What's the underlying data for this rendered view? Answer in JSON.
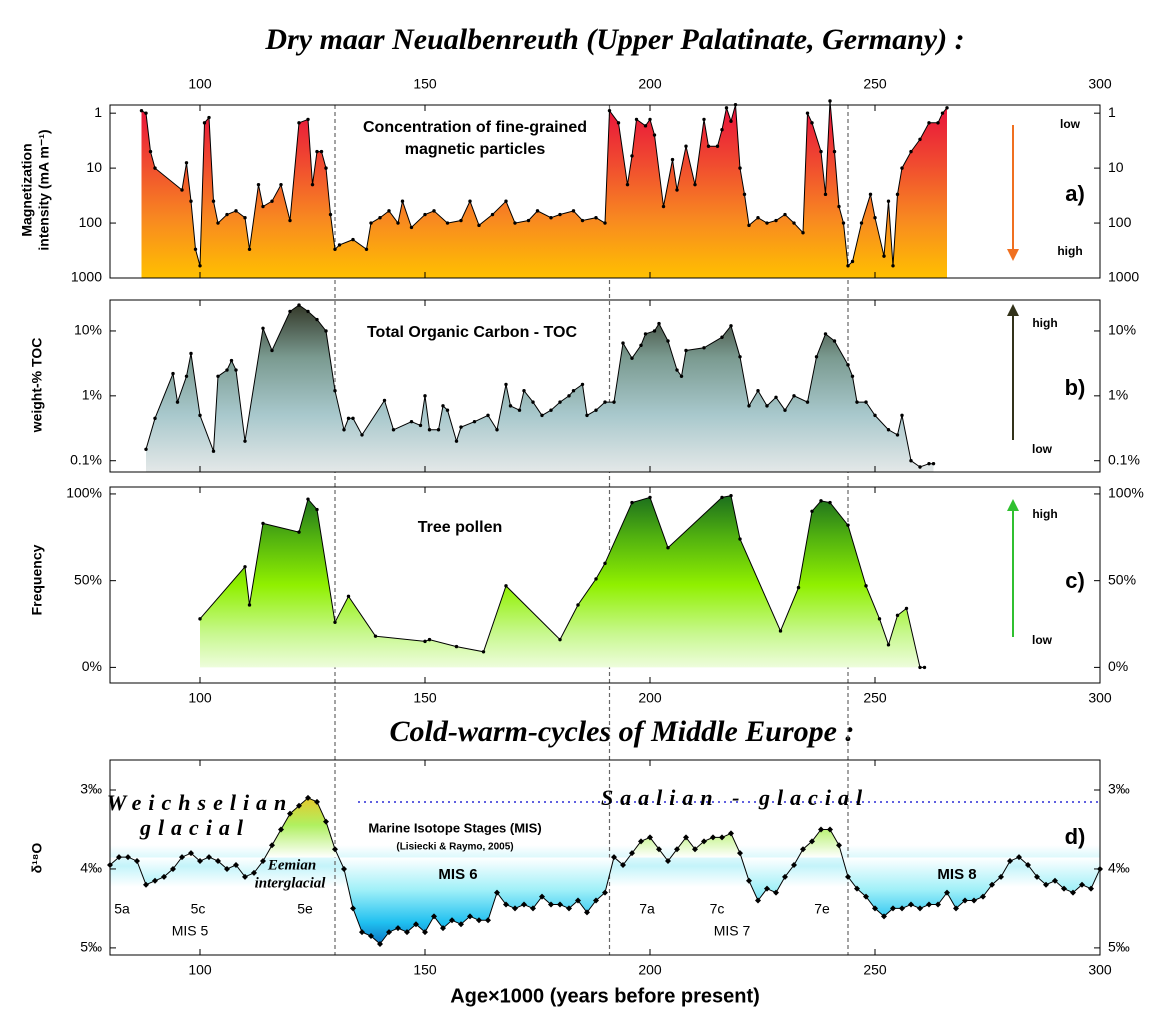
{
  "title": "Dry maar Neualbenreuth (Upper Palatinate, Germany) :",
  "section_title": "Cold-warm-cycles of Middle Europe :",
  "xlabel": "Age×1000 (years before present)",
  "xlim": [
    80,
    300
  ],
  "xticks": [
    100,
    150,
    200,
    250,
    300
  ],
  "boundaries": [
    130,
    191,
    244
  ],
  "chart_data": [
    {
      "type": "area",
      "log": true,
      "ylabel": [
        "Magnetization",
        "intensity (mA m⁻¹)"
      ],
      "ylim": [
        1000,
        0.71
      ],
      "yticks": [
        1,
        10,
        100,
        1000
      ],
      "color": "#000000",
      "gradient": [
        "#e8103c",
        "#f04a30",
        "#f88a20",
        "#ffc000"
      ],
      "x": [
        87,
        88,
        89,
        90,
        96,
        97,
        98,
        99,
        100,
        101,
        102,
        103,
        104,
        106,
        108,
        110,
        111,
        113,
        114,
        116,
        118,
        120,
        122,
        124,
        125,
        126,
        127,
        128,
        129,
        130,
        131,
        134,
        137,
        138,
        140,
        142,
        144,
        145,
        147,
        150,
        152,
        155,
        158,
        160,
        162,
        165,
        168,
        170,
        173,
        175,
        178,
        180,
        183,
        185,
        188,
        190,
        191,
        193,
        195,
        196,
        197,
        199,
        200,
        201,
        203,
        205,
        206,
        208,
        210,
        212,
        213,
        215,
        216,
        217,
        218,
        219,
        220,
        221,
        222,
        224,
        226,
        228,
        230,
        232,
        234,
        235,
        236,
        238,
        239,
        240,
        241,
        242,
        243,
        244,
        245,
        247,
        249,
        250,
        252,
        253,
        254,
        255,
        256,
        258,
        260,
        262,
        264,
        265,
        266
      ],
      "values": [
        0.9,
        1,
        5,
        10,
        25,
        8,
        40,
        300,
        600,
        1.5,
        1.2,
        40,
        100,
        70,
        60,
        80,
        300,
        20,
        50,
        40,
        20,
        90,
        1.5,
        1.3,
        20,
        5,
        5,
        10,
        70,
        300,
        250,
        200,
        300,
        100,
        80,
        60,
        100,
        40,
        120,
        70,
        60,
        100,
        90,
        40,
        110,
        70,
        40,
        100,
        90,
        60,
        80,
        70,
        60,
        90,
        80,
        100,
        0.9,
        1.5,
        20,
        6,
        1.3,
        1.7,
        1.3,
        2.5,
        50,
        7,
        25,
        4,
        20,
        1.3,
        4,
        4,
        2,
        0.8,
        1.4,
        0.7,
        10,
        30,
        110,
        80,
        100,
        90,
        70,
        100,
        150,
        1,
        1.5,
        5,
        30,
        0.6,
        5,
        50,
        100,
        600,
        500,
        100,
        30,
        80,
        400,
        40,
        600,
        30,
        10,
        5,
        3,
        1.5,
        1.5,
        1,
        0.8
      ],
      "annotations": [
        {
          "text": "Concentration of fine-grained",
          "color": "#000000"
        },
        {
          "text": "magnetic particles",
          "color": "#000000"
        },
        {
          "text": "low",
          "color": "#000000"
        },
        {
          "text": "high",
          "color": "#000000"
        },
        {
          "text": "a)",
          "color": "#000000"
        }
      ]
    },
    {
      "type": "area",
      "log": true,
      "ylabel": [
        "weight-% TOC"
      ],
      "ylim": [
        0.067,
        30
      ],
      "yticks": [
        {
          "value": 0.1,
          "label": "0.1%"
        },
        {
          "value": 1,
          "label": "1%"
        },
        {
          "value": 10,
          "label": "10%"
        }
      ],
      "color": "#000000",
      "gradient": [
        "#2e3020",
        "#7a9a90",
        "#a8c8cc",
        "#e4e8e8"
      ],
      "x": [
        88,
        90,
        94,
        95,
        97,
        98,
        100,
        103,
        104,
        106,
        107,
        108,
        110,
        114,
        116,
        120,
        122,
        124,
        126,
        128,
        130,
        132,
        133,
        134,
        136,
        141,
        143,
        147,
        149,
        150,
        151,
        153,
        154,
        155,
        157,
        158,
        161,
        164,
        166,
        168,
        169,
        171,
        172,
        174,
        176,
        178,
        180,
        182,
        183,
        185,
        186,
        188,
        190,
        192,
        194,
        196,
        198,
        199,
        201,
        202,
        204,
        206,
        207,
        208,
        212,
        216,
        218,
        220,
        222,
        224,
        226,
        228,
        230,
        232,
        235,
        237,
        239,
        241,
        244,
        245,
        246,
        248,
        250,
        253,
        255,
        256,
        258,
        260,
        262,
        263
      ],
      "values": [
        0.15,
        0.45,
        2.2,
        0.8,
        2,
        4.5,
        0.5,
        0.14,
        2,
        2.5,
        3.5,
        2.5,
        0.2,
        11,
        5,
        20,
        25,
        20,
        15,
        10,
        1.2,
        0.3,
        0.45,
        0.45,
        0.25,
        0.85,
        0.3,
        0.4,
        0.35,
        1.0,
        0.3,
        0.3,
        0.7,
        0.6,
        0.2,
        0.33,
        0.4,
        0.5,
        0.3,
        1.5,
        0.7,
        0.6,
        1.2,
        0.8,
        0.5,
        0.6,
        0.8,
        1.0,
        1.2,
        1.5,
        0.5,
        0.6,
        0.8,
        0.8,
        6.5,
        3.8,
        6,
        9,
        10,
        13,
        7,
        2.5,
        2,
        5,
        5.5,
        8,
        12,
        4,
        0.7,
        1.2,
        0.7,
        0.95,
        0.6,
        1.0,
        0.8,
        4,
        9,
        7,
        3,
        2,
        0.8,
        0.8,
        0.5,
        0.3,
        0.25,
        0.5,
        0.1,
        0.08,
        0.09,
        0.09
      ],
      "annotations": [
        {
          "text": "Total Organic Carbon - TOC",
          "color": "#000000"
        },
        {
          "text": "high",
          "color": "#4a4a20"
        },
        {
          "text": "low",
          "color": "#4a4a20"
        },
        {
          "text": "b)",
          "color": "#000000"
        }
      ]
    },
    {
      "type": "area",
      "log": false,
      "ylabel": [
        "Frequency"
      ],
      "ylim": [
        -9,
        104
      ],
      "yticks": [
        {
          "value": 0,
          "label": "0%"
        },
        {
          "value": 50,
          "label": "50%"
        },
        {
          "value": 100,
          "label": "100%"
        }
      ],
      "color": "#000000",
      "gradient": [
        "#106020",
        "#50b010",
        "#90f000",
        "#c8f890",
        "#ffffff"
      ],
      "x": [
        100,
        110,
        111,
        114,
        122,
        124,
        126,
        130,
        133,
        139,
        150,
        151,
        157,
        163,
        168,
        180,
        184,
        188,
        190,
        196,
        200,
        204,
        216,
        218,
        220,
        229,
        233,
        236,
        238,
        240,
        244,
        248,
        251,
        253,
        255,
        257,
        260,
        261
      ],
      "values": [
        28,
        58,
        36,
        83,
        78,
        97,
        91,
        26,
        41,
        18,
        15,
        16,
        12,
        9,
        47,
        16,
        36,
        51,
        60,
        95,
        98,
        69,
        98,
        99,
        74,
        21,
        46,
        90,
        96,
        95,
        82,
        47,
        28,
        13,
        30,
        34,
        0,
        0
      ],
      "annotations": [
        {
          "text": "Tree pollen",
          "color": "#000000"
        },
        {
          "text": "high",
          "color": "#20a030"
        },
        {
          "text": "low",
          "color": "#20a030"
        },
        {
          "text": "c)",
          "color": "#000000"
        }
      ]
    },
    {
      "type": "area",
      "log": false,
      "ylabel": [
        "δ¹⁸O"
      ],
      "ylim": [
        5.09,
        2.62
      ],
      "yticks": [
        {
          "value": 3,
          "label": "3‰"
        },
        {
          "value": 4,
          "label": "4‰"
        },
        {
          "value": 5,
          "label": "5‰"
        }
      ],
      "color": "#000000",
      "gradient": [
        "#e86a10",
        "#f0c020",
        "#b0f060",
        "#ffffff",
        "#a0f0f8",
        "#20c0f0",
        "#0050b0"
      ],
      "x": [
        80,
        82,
        84,
        86,
        88,
        90,
        92,
        94,
        96,
        98,
        100,
        102,
        104,
        106,
        108,
        110,
        112,
        114,
        116,
        118,
        120,
        122,
        124,
        126,
        128,
        130,
        132,
        134,
        136,
        138,
        140,
        142,
        144,
        146,
        148,
        150,
        152,
        154,
        156,
        158,
        160,
        162,
        164,
        166,
        168,
        170,
        172,
        174,
        176,
        178,
        180,
        182,
        184,
        186,
        188,
        190,
        192,
        194,
        196,
        198,
        200,
        202,
        204,
        206,
        208,
        210,
        212,
        214,
        216,
        218,
        220,
        222,
        224,
        226,
        228,
        230,
        232,
        234,
        236,
        238,
        240,
        242,
        244,
        246,
        248,
        250,
        252,
        254,
        256,
        258,
        260,
        262,
        264,
        266,
        268,
        270,
        272,
        274,
        276,
        278,
        280,
        282,
        284,
        286,
        288,
        290,
        292,
        294,
        296,
        298,
        300
      ],
      "values": [
        3.95,
        3.85,
        3.85,
        3.9,
        4.2,
        4.15,
        4.1,
        4.0,
        3.85,
        3.8,
        3.9,
        3.85,
        3.9,
        4.0,
        3.95,
        4.1,
        4.05,
        3.9,
        3.7,
        3.5,
        3.3,
        3.2,
        3.1,
        3.15,
        3.4,
        3.75,
        4.0,
        4.5,
        4.8,
        4.85,
        4.95,
        4.8,
        4.75,
        4.8,
        4.7,
        4.8,
        4.6,
        4.75,
        4.65,
        4.7,
        4.6,
        4.65,
        4.65,
        4.3,
        4.45,
        4.5,
        4.45,
        4.5,
        4.35,
        4.45,
        4.45,
        4.5,
        4.4,
        4.55,
        4.4,
        4.3,
        3.85,
        3.95,
        3.8,
        3.65,
        3.6,
        3.75,
        3.9,
        3.75,
        3.6,
        3.75,
        3.65,
        3.6,
        3.6,
        3.55,
        3.8,
        4.15,
        4.4,
        4.25,
        4.3,
        4.1,
        3.95,
        3.75,
        3.65,
        3.5,
        3.5,
        3.7,
        4.1,
        4.25,
        4.35,
        4.5,
        4.6,
        4.5,
        4.5,
        4.45,
        4.5,
        4.45,
        4.45,
        4.3,
        4.5,
        4.4,
        4.4,
        4.35,
        4.2,
        4.1,
        3.9,
        3.85,
        3.95,
        4.1,
        4.2,
        4.15,
        4.25,
        4.3,
        4.2,
        4.25,
        4.0
      ],
      "annotations": [
        {
          "text": "Weichselian",
          "color": "#6a6ae8"
        },
        {
          "text": "glacial",
          "color": "#6a6ae8"
        },
        {
          "text": "Saalian - glacial",
          "color": "#6a6ae8"
        },
        {
          "text": "Marine Isotope Stages (MIS)",
          "color": "#000000"
        },
        {
          "text": "(Lisiecki & Raymo, 2005)",
          "color": "#000000"
        },
        {
          "text": "Eemian",
          "color": "#c86428"
        },
        {
          "text": "interglacial",
          "color": "#c86428"
        },
        {
          "text": "MIS 6",
          "color": "#1020d0"
        },
        {
          "text": "MIS 8",
          "color": "#1020d0"
        },
        {
          "text": "5a",
          "color": "#f0902c"
        },
        {
          "text": "5c",
          "color": "#f0902c"
        },
        {
          "text": "5e",
          "color": "#f0902c"
        },
        {
          "text": "MIS 5",
          "color": "#f0902c"
        },
        {
          "text": "7a",
          "color": "#f0902c"
        },
        {
          "text": "7c",
          "color": "#f0902c"
        },
        {
          "text": "7e",
          "color": "#f0902c"
        },
        {
          "text": "MIS 7",
          "color": "#f0902c"
        },
        {
          "text": "d)",
          "color": "#000000"
        }
      ]
    }
  ]
}
